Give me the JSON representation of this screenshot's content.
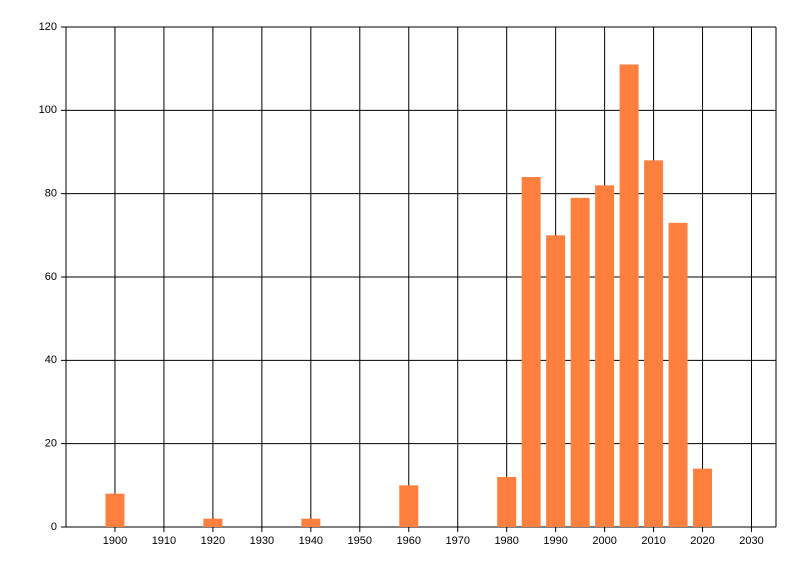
{
  "chart_data": {
    "type": "bar",
    "x": [
      1900,
      1920,
      1940,
      1960,
      1980,
      1985,
      1990,
      1995,
      2000,
      2005,
      2010,
      2015,
      2020
    ],
    "values": [
      8,
      2,
      2,
      10,
      12,
      84,
      70,
      79,
      82,
      111,
      88,
      73,
      14
    ],
    "color": "#ff7f3f",
    "xlim": [
      1890,
      2035
    ],
    "xticks": [
      1900,
      1910,
      1920,
      1930,
      1940,
      1950,
      1960,
      1970,
      1980,
      1990,
      2000,
      2010,
      2020,
      2030
    ],
    "ylim": [
      0,
      120
    ],
    "yticks": [
      0,
      20,
      40,
      60,
      80,
      100,
      120
    ],
    "grid": true
  }
}
